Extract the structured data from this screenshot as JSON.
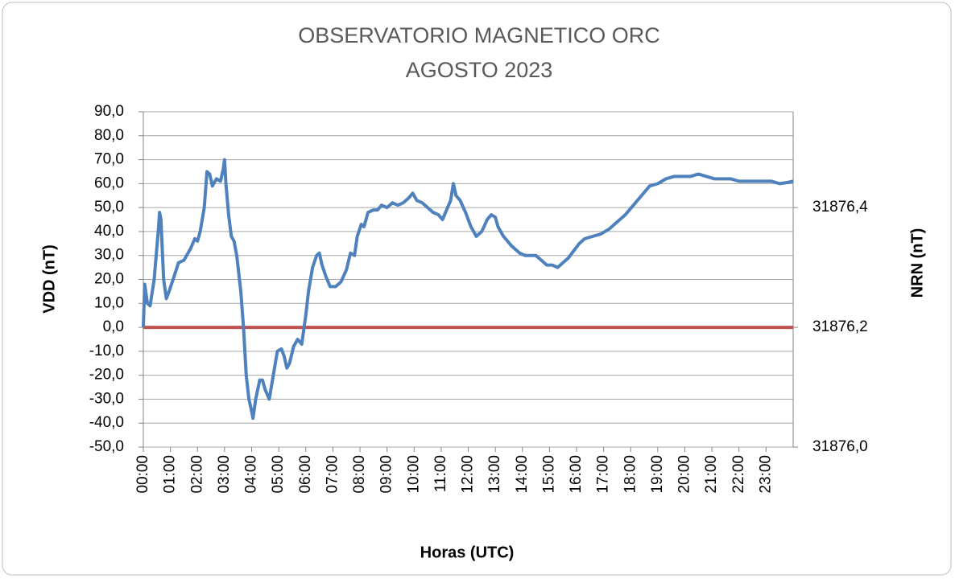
{
  "chart_data": {
    "type": "line",
    "title": "OBSERVATORIO MAGNETICO ORC",
    "subtitle": "AGOSTO 2023",
    "x_label": "Horas (UTC)",
    "y_label": "VDD (nT)",
    "y2_label": "NRN (nT)",
    "xlim": [
      0,
      24
    ],
    "xticks": [
      {
        "value": 0,
        "label": "00:00"
      },
      {
        "value": 1,
        "label": "01:00"
      },
      {
        "value": 2,
        "label": "02:00"
      },
      {
        "value": 3,
        "label": "03:00"
      },
      {
        "value": 4,
        "label": "04:00"
      },
      {
        "value": 5,
        "label": "05:00"
      },
      {
        "value": 6,
        "label": "06:00"
      },
      {
        "value": 7,
        "label": "07:00"
      },
      {
        "value": 8,
        "label": "08:00"
      },
      {
        "value": 9,
        "label": "09:00"
      },
      {
        "value": 10,
        "label": "10:00"
      },
      {
        "value": 11,
        "label": "11:00"
      },
      {
        "value": 12,
        "label": "12:00"
      },
      {
        "value": 13,
        "label": "13:00"
      },
      {
        "value": 14,
        "label": "14:00"
      },
      {
        "value": 15,
        "label": "15:00"
      },
      {
        "value": 16,
        "label": "16:00"
      },
      {
        "value": 17,
        "label": "17:00"
      },
      {
        "value": 18,
        "label": "18:00"
      },
      {
        "value": 19,
        "label": "19:00"
      },
      {
        "value": 20,
        "label": "20:00"
      },
      {
        "value": 21,
        "label": "21:00"
      },
      {
        "value": 22,
        "label": "22:00"
      },
      {
        "value": 23,
        "label": "23:00"
      }
    ],
    "ylim": [
      -50,
      90
    ],
    "yticks": [
      {
        "value": -50,
        "label": "-50,0"
      },
      {
        "value": -40,
        "label": "-40,0"
      },
      {
        "value": -30,
        "label": "-30,0"
      },
      {
        "value": -20,
        "label": "-20,0"
      },
      {
        "value": -10,
        "label": "-10,0"
      },
      {
        "value": 0,
        "label": "0,0"
      },
      {
        "value": 10,
        "label": "10,0"
      },
      {
        "value": 20,
        "label": "20,0"
      },
      {
        "value": 30,
        "label": "30,0"
      },
      {
        "value": 40,
        "label": "40,0"
      },
      {
        "value": 50,
        "label": "50,0"
      },
      {
        "value": 60,
        "label": "60,0"
      },
      {
        "value": 70,
        "label": "70,0"
      },
      {
        "value": 80,
        "label": "80,0"
      },
      {
        "value": 90,
        "label": "90,0"
      }
    ],
    "y2lim": [
      31876.0,
      31876.56
    ],
    "y2ticks": [
      {
        "value": 31876.0,
        "label": "31876,0"
      },
      {
        "value": 31876.2,
        "label": "31876,2"
      },
      {
        "value": 31876.4,
        "label": "31876,4"
      }
    ],
    "grid": true,
    "series": [
      {
        "color": "#4f81bd",
        "x": [
          0,
          0.05,
          0.15,
          0.25,
          0.4,
          0.55,
          0.6,
          0.65,
          0.75,
          0.85,
          0.95,
          1.1,
          1.3,
          1.5,
          1.75,
          1.9,
          2.0,
          2.1,
          2.25,
          2.35,
          2.45,
          2.55,
          2.7,
          2.85,
          2.95,
          3.0,
          3.05,
          3.15,
          3.25,
          3.35,
          3.45,
          3.6,
          3.7,
          3.8,
          3.9,
          4.0,
          4.05,
          4.15,
          4.3,
          4.4,
          4.5,
          4.65,
          4.8,
          4.95,
          5.1,
          5.2,
          5.3,
          5.4,
          5.55,
          5.7,
          5.85,
          6.0,
          6.1,
          6.25,
          6.4,
          6.5,
          6.6,
          6.75,
          6.9,
          7.1,
          7.3,
          7.5,
          7.65,
          7.8,
          7.9,
          8.05,
          8.15,
          8.3,
          8.5,
          8.65,
          8.8,
          9.0,
          9.2,
          9.4,
          9.6,
          9.8,
          9.95,
          10.1,
          10.3,
          10.5,
          10.7,
          10.9,
          11.05,
          11.2,
          11.35,
          11.45,
          11.55,
          11.7,
          11.9,
          12.1,
          12.3,
          12.5,
          12.7,
          12.85,
          13.0,
          13.1,
          13.3,
          13.6,
          13.9,
          14.1,
          14.3,
          14.5,
          14.7,
          14.9,
          15.1,
          15.3,
          15.5,
          15.7,
          15.9,
          16.1,
          16.3,
          16.6,
          16.9,
          17.2,
          17.5,
          17.8,
          18.1,
          18.4,
          18.7,
          19.0,
          19.3,
          19.6,
          19.9,
          20.2,
          20.5,
          20.8,
          21.1,
          21.4,
          21.7,
          22.0,
          22.3,
          22.6,
          22.9,
          23.2,
          23.5,
          23.8,
          24.0
        ],
        "values": [
          0,
          18,
          10,
          9,
          20,
          40,
          48,
          45,
          20,
          12,
          15,
          20,
          27,
          28,
          33,
          37,
          36,
          40,
          50,
          65,
          64,
          59,
          62,
          61,
          66,
          70,
          60,
          47,
          38,
          36,
          30,
          15,
          0,
          -20,
          -30,
          -35,
          -38,
          -30,
          -22,
          -22,
          -26,
          -30,
          -20,
          -10,
          -9,
          -12,
          -17,
          -15,
          -8,
          -5,
          -7,
          5,
          15,
          25,
          30,
          31,
          26,
          21,
          17,
          17,
          19,
          24,
          31,
          30,
          38,
          43,
          42,
          48,
          49,
          49,
          51,
          50,
          52,
          51,
          52,
          54,
          56,
          53,
          52,
          50,
          48,
          47,
          45,
          49,
          53,
          60,
          55,
          53,
          48,
          42,
          38,
          40,
          45,
          47,
          46,
          42,
          38,
          34,
          31,
          30,
          30,
          30,
          28,
          26,
          26,
          25,
          27,
          29,
          32,
          35,
          37,
          38,
          39,
          41,
          44,
          47,
          51,
          55,
          59,
          60,
          62,
          63,
          63,
          63,
          64,
          63,
          62,
          62,
          62,
          61,
          61,
          61,
          61,
          61,
          60,
          60.5,
          61
        ]
      },
      {
        "color": "#c0504d",
        "axis": "y2",
        "x": [
          0,
          24
        ],
        "values": [
          31876.2,
          31876.2
        ]
      }
    ]
  }
}
